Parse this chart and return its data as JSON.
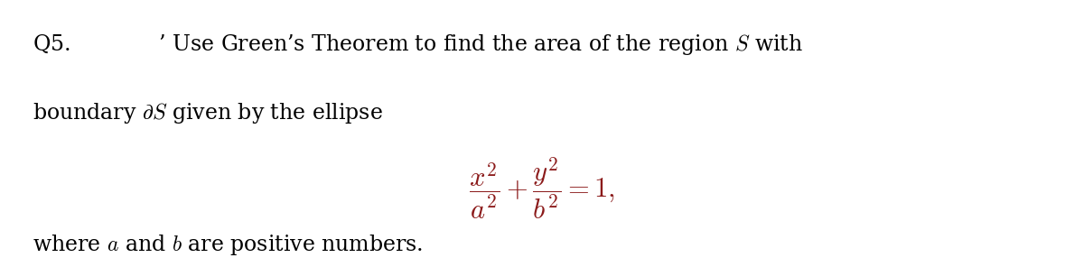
{
  "background_color": "#ffffff",
  "text_color": "#000000",
  "math_color": "#8B1A1A",
  "fig_width": 12.0,
  "fig_height": 2.96,
  "dpi": 100,
  "fontsize_main": 17,
  "fontsize_eq": 22
}
